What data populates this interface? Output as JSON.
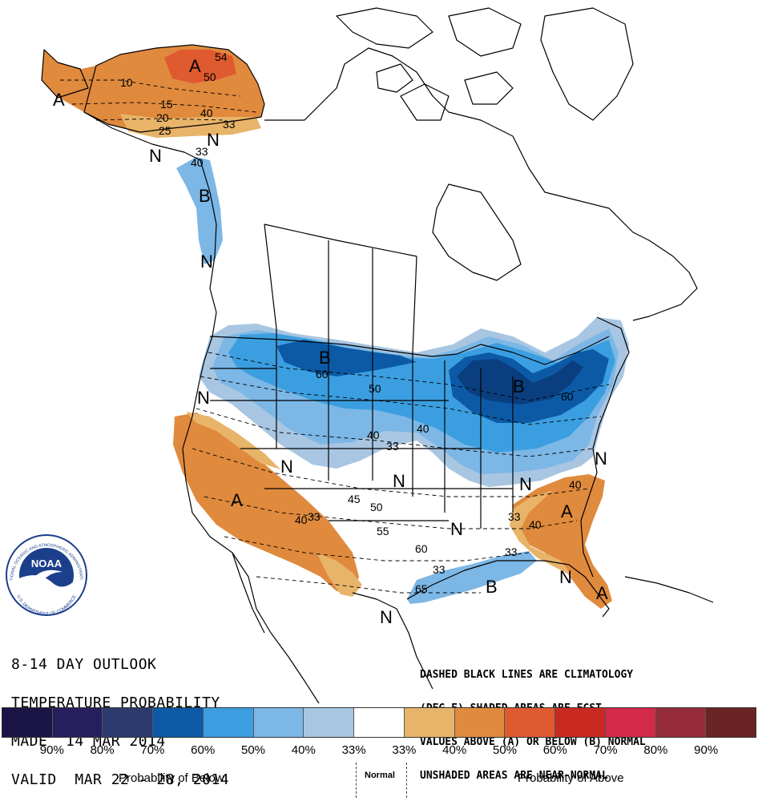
{
  "map": {
    "outlook_lines": [
      "8-14 DAY OUTLOOK",
      "TEMPERATURE PROBABILITY",
      "MADE  14 MAR 2014",
      "VALID  MAR 22 - 28, 2014"
    ],
    "legend_lines": [
      "DASHED BLACK LINES ARE CLIMATOLOGY",
      "(DEG F) SHADED AREAS ARE FCST",
      "VALUES ABOVE (A) OR BELOW (B) NORMAL",
      "UNSHADED AREAS ARE NEAR-NORMAL"
    ],
    "region_letters": [
      {
        "text": "A",
        "id": "alaska-west"
      },
      {
        "text": "A",
        "id": "alaska-north"
      },
      {
        "text": "N",
        "id": "alaska-south"
      },
      {
        "text": "N",
        "id": "yukon"
      },
      {
        "text": "B",
        "id": "bc-coast"
      },
      {
        "text": "N",
        "id": "bc-south"
      },
      {
        "text": "B",
        "id": "northern-plains"
      },
      {
        "text": "B",
        "id": "great-lakes"
      },
      {
        "text": "N",
        "id": "pacific-northwest"
      },
      {
        "text": "N",
        "id": "great-basin"
      },
      {
        "text": "A",
        "id": "california"
      },
      {
        "text": "N",
        "id": "central-plains"
      },
      {
        "text": "N",
        "id": "ohio-valley"
      },
      {
        "text": "N",
        "id": "mid-atlantic"
      },
      {
        "text": "N",
        "id": "deep-south"
      },
      {
        "text": "A",
        "id": "southeast"
      },
      {
        "text": "B",
        "id": "gulf-coast"
      },
      {
        "text": "N",
        "id": "florida-west"
      },
      {
        "text": "A",
        "id": "florida"
      },
      {
        "text": "N",
        "id": "mexico"
      }
    ],
    "contour_labels": [
      "54",
      "50",
      "10",
      "15",
      "40",
      "33",
      "20",
      "25",
      "33",
      "40",
      "60",
      "50",
      "60",
      "40",
      "33",
      "40",
      "40",
      "33",
      "45",
      "50",
      "55",
      "60",
      "65",
      "33",
      "40",
      "40",
      "33",
      "33"
    ]
  },
  "legend": {
    "colors": [
      "#1b1446",
      "#271e5e",
      "#2d3a6e",
      "#0c5aa6",
      "#3b9ee0",
      "#7cb7e6",
      "#a8c6e2",
      "#ffffff",
      "#e8b46a",
      "#e08a3e",
      "#e05a30",
      "#c82a22",
      "#d22a48",
      "#962c3a",
      "#6b2424"
    ],
    "ticks": [
      "90%",
      "80%",
      "70%",
      "60%",
      "50%",
      "40%",
      "33%",
      "33%",
      "40%",
      "50%",
      "60%",
      "70%",
      "80%",
      "90%"
    ],
    "below_label": "Probability of Below",
    "normal_label": "Normal",
    "above_label": "Probability of Above"
  },
  "logo": {
    "text": "NOAA",
    "ring_text": "NATIONAL OCEANIC AND ATMOSPHERIC ADMINISTRATION",
    "ring_text_bottom": "U.S. DEPARTMENT OF COMMERCE"
  },
  "colors": {
    "above_light": "#e8b46a",
    "above_mid": "#e08a3e",
    "above_dark": "#e05a30",
    "below_light": "#a8c6e2",
    "below_mid": "#7cb7e6",
    "below_mid2": "#3b9ee0",
    "below_dark": "#0c5aa6",
    "below_darkest": "#0a3e7e"
  }
}
